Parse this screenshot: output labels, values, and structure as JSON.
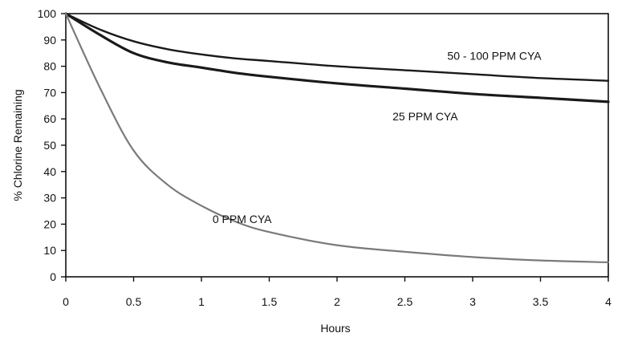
{
  "chart_data": {
    "type": "line",
    "title": "",
    "xlabel": "Hours",
    "ylabel": "% Chlorine Remaining",
    "xlim": [
      0,
      4
    ],
    "ylim": [
      0,
      100
    ],
    "x_ticks": [
      "0",
      "0.5",
      "1",
      "1.5",
      "2",
      "2.5",
      "3",
      "3.5",
      "4"
    ],
    "y_ticks": [
      "0",
      "10",
      "20",
      "30",
      "40",
      "50",
      "60",
      "70",
      "80",
      "90",
      "100"
    ],
    "grid": false,
    "series": [
      {
        "name": "50 - 100 PPM CYA",
        "color": "#1a1a1a",
        "x": [
          0,
          0.25,
          0.5,
          0.75,
          1,
          1.25,
          1.5,
          2,
          2.5,
          3,
          3.5,
          4
        ],
        "y": [
          100,
          94,
          89.5,
          86.5,
          84.5,
          83,
          82,
          80,
          78.5,
          77,
          75.5,
          74.5
        ]
      },
      {
        "name": "25 PPM CYA",
        "color": "#1a1a1a",
        "x": [
          0,
          0.25,
          0.5,
          0.75,
          1,
          1.25,
          1.5,
          2,
          2.5,
          3,
          3.5,
          4
        ],
        "y": [
          100,
          92,
          85,
          81.5,
          79.5,
          77.5,
          76,
          73.5,
          71.5,
          69.5,
          68,
          66.5
        ]
      },
      {
        "name": "0 PPM CYA",
        "color": "#7a7a7a",
        "x": [
          0,
          0.25,
          0.5,
          0.75,
          1,
          1.25,
          1.5,
          2,
          2.5,
          3,
          3.5,
          4
        ],
        "y": [
          100,
          72,
          48,
          35,
          27,
          21,
          17,
          12,
          9.5,
          7.5,
          6.2,
          5.5
        ]
      }
    ]
  }
}
